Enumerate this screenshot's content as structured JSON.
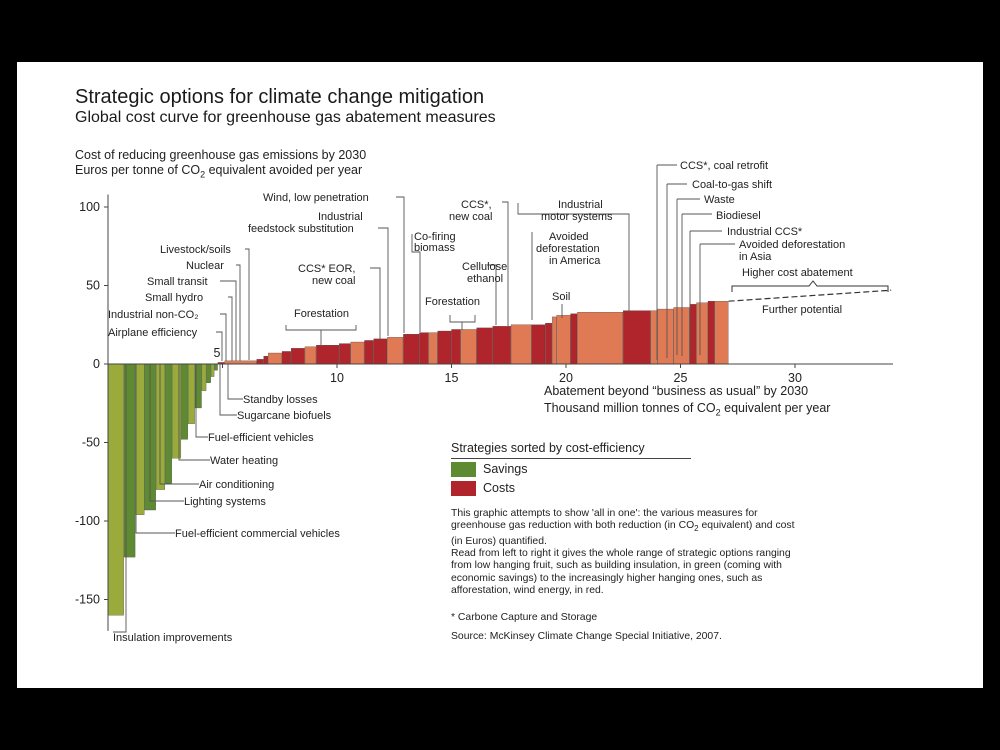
{
  "title": "Strategic options for climate change mitigation",
  "subtitle": "Global cost curve for greenhouse gas abatement measures",
  "legend": {
    "title": "Strategies sorted by cost-efficiency",
    "savings": "Savings",
    "costs": "Costs"
  },
  "description": {
    "part1": "This graphic attempts to show 'all in one': the various measures for greenhouse gas reduction with both reduction (in CO",
    "part1_sub": "2",
    "part2": " equivalent) and cost (in Euros) quantified.",
    "para2": "Read from left to right it gives the whole range of strategic options ranging from low hanging fruit, such as building insulation, in green (coming with economic savings) to the increasingly higher hanging ones, such as afforestation, wind energy, in red."
  },
  "footnote": "* Carbone Capture and Storage",
  "source": "Source: McKinsey Climate Change Special Initiative, 2007.",
  "colors": {
    "savings_dark": "#5e8a32",
    "savings_light": "#9aab3c",
    "costs_dark": "#b0252b",
    "costs_light": "#e07a55"
  },
  "chart_data": {
    "type": "bar",
    "title": "Strategic options for climate change mitigation",
    "subtitle": "Global cost curve for greenhouse gas abatement measures",
    "ylabel_line1": "Cost of reducing greenhouse gas emissions by 2030",
    "ylabel_line2_pre": "Euros per tonne of CO",
    "ylabel_line2_sub": "2",
    "ylabel_line2_post": " equivalent avoided per year",
    "xlabel_line1": "Abatement beyond “business as usual” by 2030",
    "xlabel_line2_pre": "Thousand million tonnes of CO",
    "xlabel_line2_sub": "2",
    "xlabel_line2_post": " equivalent per year",
    "xlim": [
      0,
      34.5
    ],
    "ylim": [
      -170,
      108
    ],
    "x_ticks": [
      5,
      10,
      15,
      20,
      25,
      30
    ],
    "y_ticks": [
      100,
      50,
      0,
      -50,
      -100,
      -150
    ],
    "bars": [
      {
        "x0": 0.0,
        "x1": 0.7,
        "y": -160
      },
      {
        "x0": 0.7,
        "x1": 1.2,
        "y": -123
      },
      {
        "x0": 1.2,
        "x1": 1.6,
        "y": -96
      },
      {
        "x0": 1.6,
        "x1": 2.1,
        "y": -93
      },
      {
        "x0": 2.1,
        "x1": 2.5,
        "y": -80
      },
      {
        "x0": 2.5,
        "x1": 2.8,
        "y": -76
      },
      {
        "x0": 2.8,
        "x1": 3.2,
        "y": -60
      },
      {
        "x0": 3.2,
        "x1": 3.5,
        "y": -48
      },
      {
        "x0": 3.5,
        "x1": 3.8,
        "y": -38
      },
      {
        "x0": 3.8,
        "x1": 4.1,
        "y": -28
      },
      {
        "x0": 4.1,
        "x1": 4.3,
        "y": -17
      },
      {
        "x0": 4.3,
        "x1": 4.5,
        "y": -12
      },
      {
        "x0": 4.5,
        "x1": 4.65,
        "y": -8
      },
      {
        "x0": 4.65,
        "x1": 4.8,
        "y": -4
      },
      {
        "x0": 4.8,
        "x1": 5.1,
        "y": 1
      },
      {
        "x0": 5.1,
        "x1": 6.5,
        "y": 2
      },
      {
        "x0": 6.5,
        "x1": 6.8,
        "y": 3
      },
      {
        "x0": 6.8,
        "x1": 7.0,
        "y": 5
      },
      {
        "x0": 7.0,
        "x1": 7.6,
        "y": 7
      },
      {
        "x0": 7.6,
        "x1": 8.0,
        "y": 8
      },
      {
        "x0": 8.0,
        "x1": 8.6,
        "y": 10
      },
      {
        "x0": 8.6,
        "x1": 9.1,
        "y": 11
      },
      {
        "x0": 9.1,
        "x1": 10.1,
        "y": 12
      },
      {
        "x0": 10.1,
        "x1": 10.6,
        "y": 13
      },
      {
        "x0": 10.6,
        "x1": 11.2,
        "y": 14
      },
      {
        "x0": 11.2,
        "x1": 11.6,
        "y": 15
      },
      {
        "x0": 11.6,
        "x1": 12.2,
        "y": 16
      },
      {
        "x0": 12.2,
        "x1": 12.9,
        "y": 17
      },
      {
        "x0": 12.9,
        "x1": 13.6,
        "y": 19
      },
      {
        "x0": 13.6,
        "x1": 14.0,
        "y": 20
      },
      {
        "x0": 14.0,
        "x1": 14.4,
        "y": 20
      },
      {
        "x0": 14.4,
        "x1": 15.0,
        "y": 21
      },
      {
        "x0": 15.0,
        "x1": 15.4,
        "y": 22
      },
      {
        "x0": 15.4,
        "x1": 16.1,
        "y": 22
      },
      {
        "x0": 16.1,
        "x1": 16.8,
        "y": 23
      },
      {
        "x0": 16.8,
        "x1": 17.6,
        "y": 24
      },
      {
        "x0": 17.6,
        "x1": 18.5,
        "y": 25
      },
      {
        "x0": 18.5,
        "x1": 19.1,
        "y": 25
      },
      {
        "x0": 19.1,
        "x1": 19.4,
        "y": 26
      },
      {
        "x0": 19.4,
        "x1": 19.6,
        "y": 30
      },
      {
        "x0": 19.6,
        "x1": 20.2,
        "y": 31
      },
      {
        "x0": 20.2,
        "x1": 20.5,
        "y": 32
      },
      {
        "x0": 20.5,
        "x1": 22.5,
        "y": 33
      },
      {
        "x0": 22.5,
        "x1": 23.7,
        "y": 34
      },
      {
        "x0": 23.7,
        "x1": 24.0,
        "y": 34
      },
      {
        "x0": 24.0,
        "x1": 24.7,
        "y": 35
      },
      {
        "x0": 24.7,
        "x1": 25.4,
        "y": 36
      },
      {
        "x0": 25.4,
        "x1": 25.7,
        "y": 38
      },
      {
        "x0": 25.7,
        "x1": 26.2,
        "y": 39
      },
      {
        "x0": 26.2,
        "x1": 26.5,
        "y": 40
      },
      {
        "x0": 26.5,
        "x1": 27.1,
        "y": 40
      }
    ],
    "further_potential_line": {
      "x0": 27.1,
      "y0": 40,
      "x1": 34.2,
      "y1": 47
    },
    "labels": [
      {
        "text": "Insulation improvements",
        "side": "below"
      },
      {
        "text": "Fuel-efficient commercial vehicles",
        "side": "below"
      },
      {
        "text": "Lighting systems",
        "side": "below"
      },
      {
        "text": "Air conditioning",
        "side": "below"
      },
      {
        "text": "Water heating",
        "side": "below"
      },
      {
        "text": "Fuel-efficient vehicles",
        "side": "below"
      },
      {
        "text": "Sugarcane biofuels",
        "side": "below"
      },
      {
        "text": "Standby losses",
        "side": "below"
      },
      {
        "text": "Airplane efficiency",
        "side": "above"
      },
      {
        "text": "Industrial non-CO₂",
        "side": "above"
      },
      {
        "text": "Small hydro",
        "side": "above"
      },
      {
        "text": "Small transit",
        "side": "above"
      },
      {
        "text": "Nuclear",
        "side": "above"
      },
      {
        "text": "Livestock/soils",
        "side": "above"
      },
      {
        "text": "Forestation",
        "side": "above"
      },
      {
        "text": "CCS* EOR,",
        "side": "above"
      },
      {
        "text": "new coal",
        "side": "above"
      },
      {
        "text": "Industrial",
        "side": "above"
      },
      {
        "text": "feedstock substitution",
        "side": "above"
      },
      {
        "text": "Wind, low penetration",
        "side": "above"
      },
      {
        "text": "Co-firing",
        "side": "above"
      },
      {
        "text": "biomass",
        "side": "above"
      },
      {
        "text": "CCS*,",
        "side": "above"
      },
      {
        "text": "new coal",
        "side": "above"
      },
      {
        "text": "Forestation",
        "side": "above"
      },
      {
        "text": "Cellulose",
        "side": "above"
      },
      {
        "text": "ethanol",
        "side": "above"
      },
      {
        "text": "Industrial",
        "side": "above"
      },
      {
        "text": "motor systems",
        "side": "above"
      },
      {
        "text": "Avoided",
        "side": "above"
      },
      {
        "text": "deforestation",
        "side": "above"
      },
      {
        "text": "in America",
        "side": "above"
      },
      {
        "text": "Soil",
        "side": "above"
      },
      {
        "text": "CCS*, coal retrofit",
        "side": "above"
      },
      {
        "text": "Coal-to-gas shift",
        "side": "above"
      },
      {
        "text": "Waste",
        "side": "above"
      },
      {
        "text": "Biodiesel",
        "side": "above"
      },
      {
        "text": "Industrial CCS*",
        "side": "above"
      },
      {
        "text": "Avoided deforestation",
        "side": "above"
      },
      {
        "text": "in Asia",
        "side": "above"
      },
      {
        "text": "Higher cost abatement",
        "side": "above"
      },
      {
        "text": "Further potential",
        "side": "above"
      }
    ],
    "grid": false,
    "legend_position": "bottom-right"
  }
}
